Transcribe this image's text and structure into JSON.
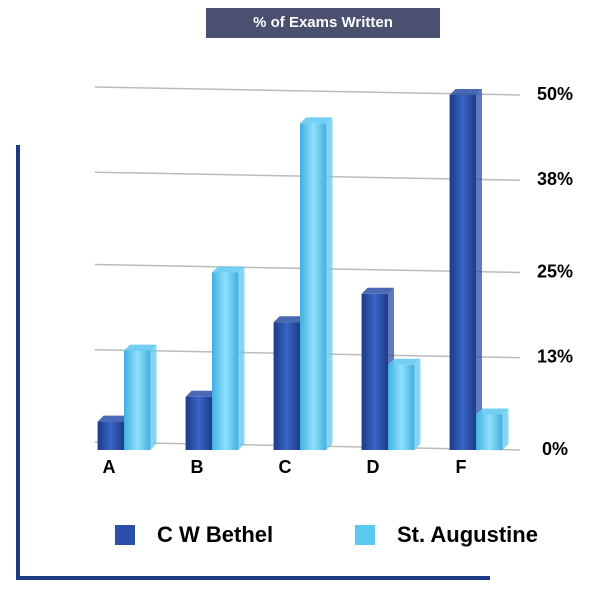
{
  "chart_data": {
    "type": "bar",
    "title": "% of Exams Written",
    "categories": [
      "A",
      "B",
      "C",
      "D",
      "F"
    ],
    "series": [
      {
        "name": "C W Bethel",
        "color": "#2a4fa8",
        "values": [
          4,
          7.5,
          18,
          22,
          50
        ]
      },
      {
        "name": "St. Augustine",
        "color": "#5cc8f0",
        "values": [
          14,
          25,
          46,
          12,
          5
        ]
      }
    ],
    "ylim": [
      0,
      50
    ],
    "yticks": [
      {
        "value": 0,
        "label": "0%"
      },
      {
        "value": 13,
        "label": "13%"
      },
      {
        "value": 25,
        "label": "25%"
      },
      {
        "value": 38,
        "label": "38%"
      },
      {
        "value": 50,
        "label": "50%"
      }
    ],
    "grid": true
  }
}
